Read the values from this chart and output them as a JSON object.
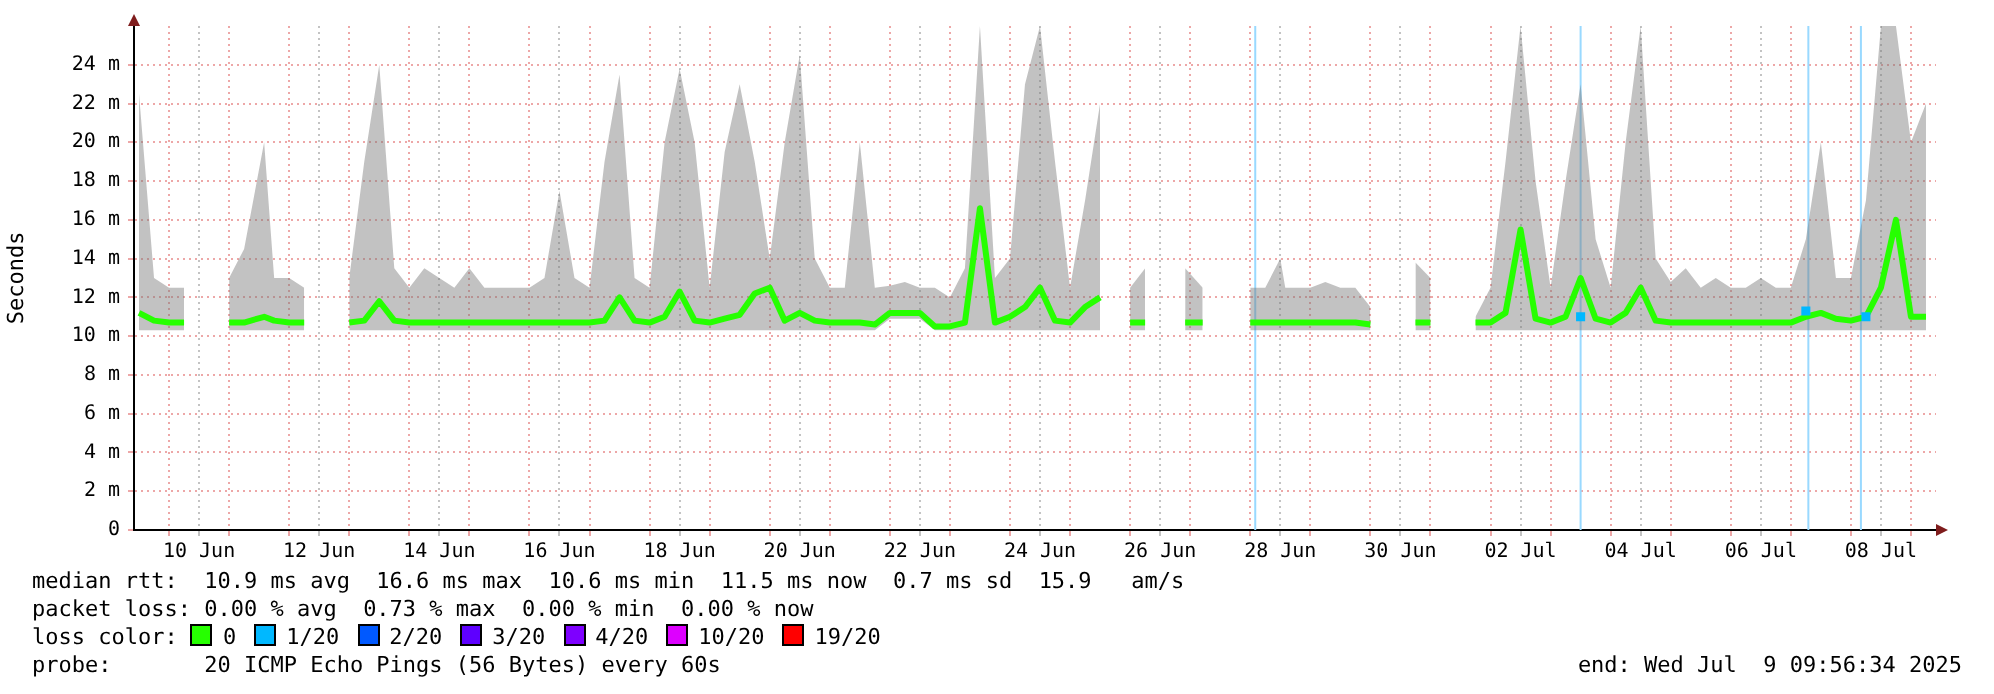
{
  "chart_data": {
    "type": "line",
    "ylabel": "Seconds",
    "legend_title": "loss color:",
    "legend": "bottom",
    "grid": true,
    "marker": "none",
    "line_style": "solid",
    "xlim": [
      "2025-06-09T10:00",
      "2025-07-09T10:00"
    ],
    "xticks": [
      {
        "value": "2025-06-10T00:00",
        "label": null
      },
      {
        "value": "2025-06-10T12:00",
        "label": "10 Jun"
      },
      {
        "value": "2025-06-11T00:00",
        "label": null
      },
      {
        "value": "2025-06-12T00:00",
        "label": null
      },
      {
        "value": "2025-06-12T12:00",
        "label": "12 Jun"
      },
      {
        "value": "2025-06-13T00:00",
        "label": null
      },
      {
        "value": "2025-06-14T00:00",
        "label": null
      },
      {
        "value": "2025-06-14T12:00",
        "label": "14 Jun"
      },
      {
        "value": "2025-06-15T00:00",
        "label": null
      },
      {
        "value": "2025-06-16T00:00",
        "label": null
      },
      {
        "value": "2025-06-16T12:00",
        "label": "16 Jun"
      },
      {
        "value": "2025-06-17T00:00",
        "label": null
      },
      {
        "value": "2025-06-18T00:00",
        "label": null
      },
      {
        "value": "2025-06-18T12:00",
        "label": "18 Jun"
      },
      {
        "value": "2025-06-19T00:00",
        "label": null
      },
      {
        "value": "2025-06-20T00:00",
        "label": null
      },
      {
        "value": "2025-06-20T12:00",
        "label": "20 Jun"
      },
      {
        "value": "2025-06-21T00:00",
        "label": null
      },
      {
        "value": "2025-06-22T00:00",
        "label": null
      },
      {
        "value": "2025-06-22T12:00",
        "label": "22 Jun"
      },
      {
        "value": "2025-06-23T00:00",
        "label": null
      },
      {
        "value": "2025-06-24T00:00",
        "label": null
      },
      {
        "value": "2025-06-24T12:00",
        "label": "24 Jun"
      },
      {
        "value": "2025-06-25T00:00",
        "label": null
      },
      {
        "value": "2025-06-26T00:00",
        "label": null
      },
      {
        "value": "2025-06-26T12:00",
        "label": "26 Jun"
      },
      {
        "value": "2025-06-27T00:00",
        "label": null
      },
      {
        "value": "2025-06-28T00:00",
        "label": null
      },
      {
        "value": "2025-06-28T12:00",
        "label": "28 Jun"
      },
      {
        "value": "2025-06-29T00:00",
        "label": null
      },
      {
        "value": "2025-06-30T00:00",
        "label": null
      },
      {
        "value": "2025-06-30T12:00",
        "label": "30 Jun"
      },
      {
        "value": "2025-07-01T00:00",
        "label": null
      },
      {
        "value": "2025-07-02T00:00",
        "label": null
      },
      {
        "value": "2025-07-02T12:00",
        "label": "02 Jul"
      },
      {
        "value": "2025-07-03T00:00",
        "label": null
      },
      {
        "value": "2025-07-04T00:00",
        "label": null
      },
      {
        "value": "2025-07-04T12:00",
        "label": "04 Jul"
      },
      {
        "value": "2025-07-05T00:00",
        "label": null
      },
      {
        "value": "2025-07-06T00:00",
        "label": null
      },
      {
        "value": "2025-07-06T12:00",
        "label": "06 Jul"
      },
      {
        "value": "2025-07-07T00:00",
        "label": null
      },
      {
        "value": "2025-07-08T00:00",
        "label": null
      },
      {
        "value": "2025-07-08T12:00",
        "label": "08 Jul"
      },
      {
        "value": "2025-07-09T00:00",
        "label": null
      }
    ],
    "ylim": [
      0,
      26
    ],
    "yticks": [
      0,
      {
        "value": 2,
        "label": "2 m"
      },
      {
        "value": 4,
        "label": "4 m"
      },
      {
        "value": 6,
        "label": "6 m"
      },
      {
        "value": 8,
        "label": "8 m"
      },
      {
        "value": 10,
        "label": "10 m"
      },
      {
        "value": 12,
        "label": "12 m"
      },
      {
        "value": 14,
        "label": "14 m"
      },
      {
        "value": 16,
        "label": "16 m"
      },
      {
        "value": 18,
        "label": "18 m"
      },
      {
        "value": 20,
        "label": "20 m"
      },
      {
        "value": 22,
        "label": "22 m"
      },
      {
        "value": 24,
        "label": "24 m"
      }
    ],
    "x": [
      "2025-06-09T12:00",
      "2025-06-09T18:00",
      "2025-06-10T00:00",
      "2025-06-10T06:00",
      "2025-06-10T12:00",
      "2025-06-10T18:00",
      "2025-06-11T00:00",
      "2025-06-11T06:00",
      "2025-06-11T14:00",
      "2025-06-11T18:00",
      "2025-06-12T00:00",
      "2025-06-12T06:00",
      "2025-06-12T12:00",
      "2025-06-12T18:00",
      "2025-06-13T00:00",
      "2025-06-13T06:00",
      "2025-06-13T12:00",
      "2025-06-13T18:00",
      "2025-06-14T00:00",
      "2025-06-14T06:00",
      "2025-06-14T12:00",
      "2025-06-14T18:00",
      "2025-06-15T00:00",
      "2025-06-15T06:00",
      "2025-06-15T12:00",
      "2025-06-15T18:00",
      "2025-06-16T00:00",
      "2025-06-16T06:00",
      "2025-06-16T12:00",
      "2025-06-16T18:00",
      "2025-06-17T00:00",
      "2025-06-17T06:00",
      "2025-06-17T12:00",
      "2025-06-17T18:00",
      "2025-06-18T00:00",
      "2025-06-18T06:00",
      "2025-06-18T12:00",
      "2025-06-18T18:00",
      "2025-06-19T00:00",
      "2025-06-19T06:00",
      "2025-06-19T12:00",
      "2025-06-19T18:00",
      "2025-06-20T00:00",
      "2025-06-20T06:00",
      "2025-06-20T12:00",
      "2025-06-20T18:00",
      "2025-06-21T00:00",
      "2025-06-21T06:00",
      "2025-06-21T12:00",
      "2025-06-21T18:00",
      "2025-06-22T00:00",
      "2025-06-22T06:00",
      "2025-06-22T12:00",
      "2025-06-22T18:00",
      "2025-06-23T00:00",
      "2025-06-23T06:00",
      "2025-06-23T12:00",
      "2025-06-23T18:00",
      "2025-06-24T00:00",
      "2025-06-24T06:00",
      "2025-06-24T12:00",
      "2025-06-24T18:00",
      "2025-06-25T00:00",
      "2025-06-25T06:00",
      "2025-06-25T12:00",
      "2025-06-25T18:00",
      "2025-06-26T00:00",
      "2025-06-26T06:00",
      "2025-06-26T12:00",
      "2025-06-26T22:00",
      "2025-06-27T05:00",
      "2025-06-27T06:00",
      "2025-06-27T12:00",
      "2025-06-27T18:00",
      "2025-06-28T00:00",
      "2025-06-28T06:00",
      "2025-06-28T12:00",
      "2025-06-28T14:00",
      "2025-06-29T00:00",
      "2025-06-29T06:00",
      "2025-06-29T12:00",
      "2025-06-29T18:00",
      "2025-06-30T00:00",
      "2025-06-30T06:00",
      "2025-06-30T12:00",
      "2025-06-30T18:00",
      "2025-07-01T00:00",
      "2025-07-01T06:00",
      "2025-07-01T12:00",
      "2025-07-01T18:00",
      "2025-07-02T00:00",
      "2025-07-02T06:00",
      "2025-07-02T12:00",
      "2025-07-02T18:00",
      "2025-07-03T00:00",
      "2025-07-03T06:00",
      "2025-07-03T12:00",
      "2025-07-03T18:00",
      "2025-07-04T00:00",
      "2025-07-04T06:00",
      "2025-07-04T12:00",
      "2025-07-04T18:00",
      "2025-07-05T00:00",
      "2025-07-05T06:00",
      "2025-07-05T12:00",
      "2025-07-05T18:00",
      "2025-07-06T00:00",
      "2025-07-06T06:00",
      "2025-07-06T12:00",
      "2025-07-06T18:00",
      "2025-07-07T00:00",
      "2025-07-07T06:00",
      "2025-07-07T12:00",
      "2025-07-07T18:00",
      "2025-07-08T00:00",
      "2025-07-08T06:00",
      "2025-07-08T12:00",
      "2025-07-08T18:00",
      "2025-07-09T00:00",
      "2025-07-09T06:00"
    ],
    "series": [
      {
        "name": "0",
        "color": "#26ff00",
        "values": [
          11.2,
          10.8,
          10.7,
          10.7,
          null,
          null,
          10.7,
          10.7,
          11.0,
          10.8,
          10.7,
          10.7,
          null,
          null,
          10.7,
          10.8,
          11.8,
          10.8,
          10.7,
          10.7,
          10.7,
          10.7,
          10.7,
          10.7,
          10.7,
          10.7,
          10.7,
          10.7,
          10.7,
          10.7,
          10.7,
          10.8,
          12.0,
          10.8,
          10.7,
          11.0,
          12.3,
          10.8,
          10.7,
          10.9,
          11.1,
          12.2,
          12.5,
          10.8,
          11.2,
          10.8,
          10.7,
          10.7,
          10.7,
          10.6,
          11.2,
          11.2,
          11.2,
          10.5,
          10.5,
          10.7,
          16.6,
          10.7,
          11.0,
          11.5,
          12.5,
          10.8,
          10.7,
          11.5,
          12.0,
          null,
          10.7,
          10.7,
          null,
          10.7,
          10.7,
          null,
          null,
          null,
          10.7,
          10.7,
          10.7,
          10.7,
          10.7,
          10.7,
          10.7,
          10.7,
          10.6,
          null,
          null,
          10.7,
          10.7,
          null,
          null,
          10.7,
          10.7,
          11.2,
          15.5,
          10.9,
          10.7,
          11.0,
          13.0,
          10.9,
          10.7,
          11.2,
          12.5,
          10.8,
          10.7,
          10.7,
          10.7,
          10.7,
          10.7,
          10.7,
          10.7,
          10.7,
          10.7,
          11.0,
          11.2,
          10.9,
          10.8,
          11.0,
          12.5,
          16.0,
          11.0,
          11.0
        ],
        "lower": [
          10.3,
          10.3,
          10.3,
          10.3,
          null,
          null,
          10.3,
          10.3,
          10.3,
          10.3,
          10.3,
          10.3,
          null,
          null,
          10.3,
          10.3,
          10.3,
          10.3,
          10.3,
          10.3,
          10.3,
          10.3,
          10.3,
          10.3,
          10.3,
          10.3,
          10.3,
          10.3,
          10.3,
          10.3,
          10.3,
          10.3,
          10.3,
          10.3,
          10.3,
          10.3,
          10.3,
          10.3,
          10.3,
          10.3,
          10.3,
          10.3,
          10.3,
          10.3,
          10.3,
          10.3,
          10.3,
          10.3,
          10.3,
          10.3,
          10.9,
          10.9,
          10.9,
          10.3,
          10.3,
          10.3,
          10.3,
          10.3,
          10.3,
          10.3,
          10.3,
          10.3,
          10.3,
          10.3,
          10.3,
          null,
          10.3,
          10.3,
          null,
          10.3,
          10.3,
          null,
          null,
          null,
          10.3,
          10.3,
          10.3,
          10.3,
          10.3,
          10.3,
          10.3,
          10.3,
          10.3,
          null,
          null,
          10.3,
          10.3,
          null,
          null,
          10.3,
          10.3,
          10.3,
          10.3,
          10.3,
          10.3,
          10.3,
          10.3,
          10.3,
          10.3,
          10.3,
          10.3,
          10.3,
          10.3,
          10.3,
          10.3,
          10.3,
          10.3,
          10.3,
          10.3,
          10.3,
          10.3,
          10.3,
          10.3,
          10.3,
          10.3,
          10.3,
          10.3,
          10.3,
          10.3,
          10.3
        ],
        "upper": [
          22.5,
          13,
          12.5,
          12.5,
          null,
          null,
          13,
          14.5,
          20,
          13,
          13,
          12.5,
          null,
          null,
          13,
          19,
          24,
          13.5,
          12.5,
          13.5,
          13,
          12.5,
          13.5,
          12.5,
          12.5,
          12.5,
          12.5,
          13,
          17.5,
          13,
          12.5,
          19,
          23.5,
          13,
          12.5,
          20,
          23.8,
          20,
          12.5,
          19.5,
          23,
          19,
          14,
          20,
          24.5,
          14,
          12.5,
          12.5,
          20,
          12.5,
          12.6,
          12.8,
          12.5,
          12.5,
          12,
          13.5,
          26,
          13,
          14,
          23,
          26,
          19,
          12.5,
          17,
          22,
          null,
          12.5,
          13.5,
          null,
          13.5,
          12.5,
          null,
          null,
          null,
          12.5,
          12.5,
          14,
          12.5,
          12.5,
          12.8,
          12.5,
          12.5,
          11.5,
          null,
          null,
          13.8,
          13,
          null,
          null,
          11,
          12.5,
          19,
          26,
          18,
          12.5,
          18,
          23,
          15,
          12.5,
          20,
          26,
          14,
          12.8,
          13.5,
          12.5,
          13,
          12.5,
          12.5,
          13,
          12.5,
          12.5,
          15,
          20,
          13,
          13,
          17,
          26,
          26,
          20,
          22
        ]
      },
      {
        "name": "1/20",
        "color": "#00b8ff",
        "type": "scatter",
        "marker": "square",
        "x": [
          "2025-07-03T12:00",
          "2025-07-07T06:00",
          "2025-07-08T06:00"
        ],
        "values": [
          11.0,
          11.3,
          11.0
        ]
      },
      {
        "name": "2/20",
        "color": "#0059ff",
        "type": "scatter",
        "marker": "square",
        "values": [
          null,
          null,
          null,
          null,
          null,
          null,
          null,
          null,
          null,
          null,
          null,
          null,
          null,
          null,
          null,
          null,
          null,
          null,
          null,
          null,
          null,
          null,
          null,
          null,
          null,
          null,
          null,
          null,
          null,
          null,
          null,
          null,
          null,
          null,
          null,
          null,
          null,
          null,
          null,
          null,
          null,
          null,
          null,
          null,
          null,
          null,
          null,
          null,
          null,
          null,
          null,
          null,
          null,
          null,
          null,
          null,
          null,
          null,
          null,
          null,
          null,
          null,
          null,
          null,
          null,
          null,
          null,
          null,
          null,
          null,
          null,
          null,
          null,
          null,
          null,
          null,
          null,
          null,
          null,
          null,
          null,
          null,
          null,
          null,
          null,
          null,
          null,
          null,
          null,
          null,
          null,
          null,
          null,
          null,
          null,
          null,
          null,
          null,
          null,
          null,
          null,
          null,
          null,
          null,
          null,
          null,
          null,
          null,
          null,
          null,
          null,
          null,
          null,
          null,
          null,
          null,
          null,
          null,
          null,
          null
        ]
      },
      {
        "name": "3/20",
        "color": "#5e00ff",
        "type": "scatter",
        "marker": "square",
        "values": [
          null,
          null,
          null,
          null,
          null,
          null,
          null,
          null,
          null,
          null,
          null,
          null,
          null,
          null,
          null,
          null,
          null,
          null,
          null,
          null,
          null,
          null,
          null,
          null,
          null,
          null,
          null,
          null,
          null,
          null,
          null,
          null,
          null,
          null,
          null,
          null,
          null,
          null,
          null,
          null,
          null,
          null,
          null,
          null,
          null,
          null,
          null,
          null,
          null,
          null,
          null,
          null,
          null,
          null,
          null,
          null,
          null,
          null,
          null,
          null,
          null,
          null,
          null,
          null,
          null,
          null,
          null,
          null,
          null,
          null,
          null,
          null,
          null,
          null,
          null,
          null,
          null,
          null,
          null,
          null,
          null,
          null,
          null,
          null,
          null,
          null,
          null,
          null,
          null,
          null,
          null,
          null,
          null,
          null,
          null,
          null,
          null,
          null,
          null,
          null,
          null,
          null,
          null,
          null,
          null,
          null,
          null,
          null,
          null,
          null,
          null,
          null,
          null,
          null,
          null,
          null,
          null,
          null,
          null,
          null
        ]
      },
      {
        "name": "4/20",
        "color": "#7e00ff",
        "type": "scatter",
        "marker": "square",
        "values": [
          null,
          null,
          null,
          null,
          null,
          null,
          null,
          null,
          null,
          null,
          null,
          null,
          null,
          null,
          null,
          null,
          null,
          null,
          null,
          null,
          null,
          null,
          null,
          null,
          null,
          null,
          null,
          null,
          null,
          null,
          null,
          null,
          null,
          null,
          null,
          null,
          null,
          null,
          null,
          null,
          null,
          null,
          null,
          null,
          null,
          null,
          null,
          null,
          null,
          null,
          null,
          null,
          null,
          null,
          null,
          null,
          null,
          null,
          null,
          null,
          null,
          null,
          null,
          null,
          null,
          null,
          null,
          null,
          null,
          null,
          null,
          null,
          null,
          null,
          null,
          null,
          null,
          null,
          null,
          null,
          null,
          null,
          null,
          null,
          null,
          null,
          null,
          null,
          null,
          null,
          null,
          null,
          null,
          null,
          null,
          null,
          null,
          null,
          null,
          null,
          null,
          null,
          null,
          null,
          null,
          null,
          null,
          null,
          null,
          null,
          null,
          null,
          null,
          null,
          null,
          null,
          null,
          null,
          null,
          null
        ]
      },
      {
        "name": "10/20",
        "color": "#dd00ff",
        "type": "scatter",
        "marker": "square",
        "values": [
          null,
          null,
          null,
          null,
          null,
          null,
          null,
          null,
          null,
          null,
          null,
          null,
          null,
          null,
          null,
          null,
          null,
          null,
          null,
          null,
          null,
          null,
          null,
          null,
          null,
          null,
          null,
          null,
          null,
          null,
          null,
          null,
          null,
          null,
          null,
          null,
          null,
          null,
          null,
          null,
          null,
          null,
          null,
          null,
          null,
          null,
          null,
          null,
          null,
          null,
          null,
          null,
          null,
          null,
          null,
          null,
          null,
          null,
          null,
          null,
          null,
          null,
          null,
          null,
          null,
          null,
          null,
          null,
          null,
          null,
          null,
          null,
          null,
          null,
          null,
          null,
          null,
          null,
          null,
          null,
          null,
          null,
          null,
          null,
          null,
          null,
          null,
          null,
          null,
          null,
          null,
          null,
          null,
          null,
          null,
          null,
          null,
          null,
          null,
          null,
          null,
          null,
          null,
          null,
          null,
          null,
          null,
          null,
          null,
          null,
          null,
          null,
          null,
          null,
          null,
          null,
          null,
          null,
          null,
          null
        ]
      },
      {
        "name": "19/20",
        "color": "#ff0000",
        "type": "scatter",
        "marker": "square",
        "values": [
          null,
          null,
          null,
          null,
          null,
          null,
          null,
          null,
          null,
          null,
          null,
          null,
          null,
          null,
          null,
          null,
          null,
          null,
          null,
          null,
          null,
          null,
          null,
          null,
          null,
          null,
          null,
          null,
          null,
          null,
          null,
          null,
          null,
          null,
          null,
          null,
          null,
          null,
          null,
          null,
          null,
          null,
          null,
          null,
          null,
          null,
          null,
          null,
          null,
          null,
          null,
          null,
          null,
          null,
          null,
          null,
          null,
          null,
          null,
          null,
          null,
          null,
          null,
          null,
          null,
          null,
          null,
          null,
          null,
          null,
          null,
          null,
          null,
          null,
          null,
          null,
          null,
          null,
          null,
          null,
          null,
          null,
          null,
          null,
          null,
          null,
          null,
          null,
          null,
          null,
          null,
          null,
          null,
          null,
          null,
          null,
          null,
          null,
          null,
          null,
          null,
          null,
          null,
          null,
          null,
          null,
          null,
          null,
          null,
          null,
          null,
          null,
          null,
          null,
          null,
          null,
          null,
          null,
          null,
          null
        ]
      }
    ],
    "ref_lines": [
      {
        "axis": "x",
        "value": "2025-06-28T02:00",
        "color": "#99d9ff"
      },
      {
        "axis": "x",
        "value": "2025-07-03T12:00",
        "color": "#99d9ff"
      },
      {
        "axis": "x",
        "value": "2025-07-07T07:00",
        "color": "#99d9ff"
      },
      {
        "axis": "x",
        "value": "2025-07-08T04:00",
        "color": "#99d9ff"
      }
    ],
    "annotations": [
      "median rtt:  10.9 ms avg  16.6 ms max  10.6 ms min  11.5 ms now  0.7 ms sd  15.9   am/s",
      "packet loss: 0.00 % avg  0.73 % max  0.00 % min  0.00 % now",
      "probe:       20 ICMP Echo Pings (56 Bytes) every 60s",
      "end: Wed Jul  9 09:56:34 2025"
    ]
  }
}
